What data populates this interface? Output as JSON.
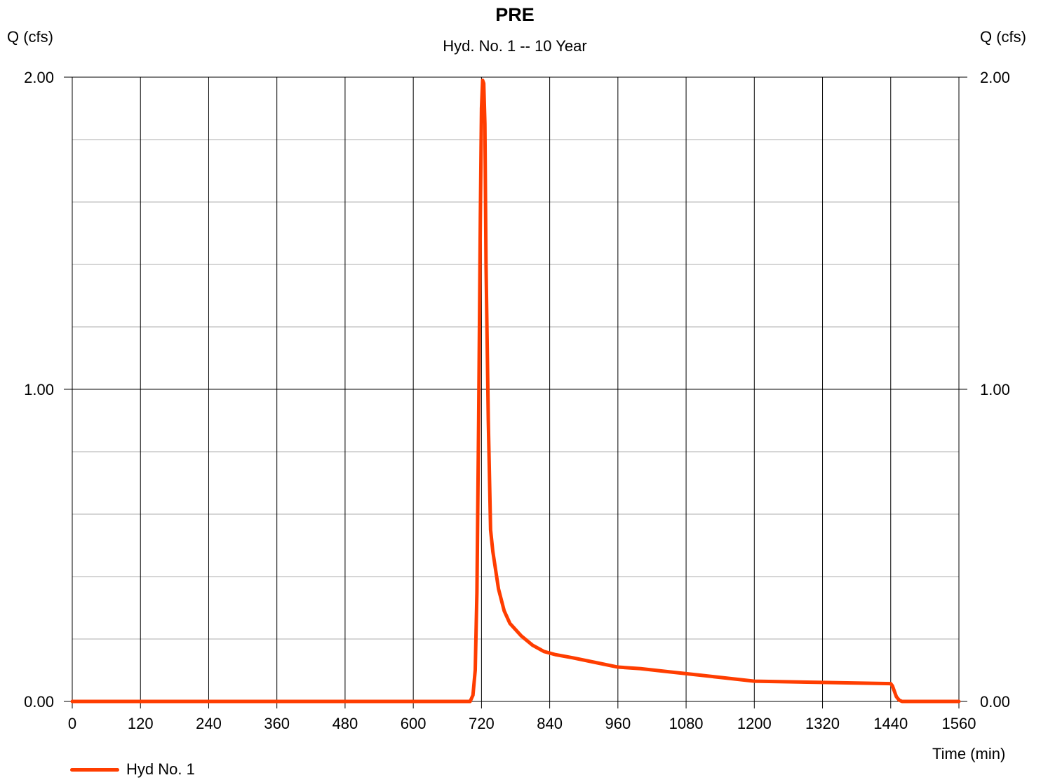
{
  "chart_data": {
    "type": "line",
    "title": "PRE",
    "subtitle": "Hyd. No. 1 -- 10 Year",
    "ylabel_left": "Q (cfs)",
    "ylabel_right": "Q (cfs)",
    "xlabel": "Time (min)",
    "xlim": [
      0,
      1560
    ],
    "ylim": [
      0,
      2.0
    ],
    "x_ticks": [
      0,
      120,
      240,
      360,
      480,
      600,
      720,
      840,
      960,
      1080,
      1200,
      1320,
      1440,
      1560
    ],
    "y_ticks": [
      0,
      1,
      2
    ],
    "y_tick_labels": [
      "0.00",
      "1.00",
      "2.00"
    ],
    "y_minor_step": 0.2,
    "grid": true,
    "legend_position": "bottom-left",
    "series": [
      {
        "name": "Hyd No. 1",
        "color": "#ff3d00",
        "x": [
          0,
          700,
          705,
          709,
          712,
          715,
          718,
          720,
          722,
          724,
          726,
          728,
          732,
          736,
          740,
          750,
          760,
          770,
          790,
          810,
          830,
          850,
          880,
          920,
          960,
          1000,
          1050,
          1100,
          1150,
          1200,
          1260,
          1320,
          1380,
          1440,
          1443,
          1446,
          1450,
          1455,
          1460,
          1560
        ],
        "y": [
          0,
          0,
          0.02,
          0.1,
          0.35,
          0.9,
          1.55,
          1.9,
          1.99,
          1.98,
          1.85,
          1.4,
          0.9,
          0.55,
          0.48,
          0.36,
          0.29,
          0.25,
          0.21,
          0.18,
          0.16,
          0.15,
          0.14,
          0.125,
          0.11,
          0.105,
          0.095,
          0.085,
          0.075,
          0.065,
          0.063,
          0.061,
          0.059,
          0.057,
          0.05,
          0.035,
          0.015,
          0.004,
          0,
          0
        ]
      }
    ]
  }
}
